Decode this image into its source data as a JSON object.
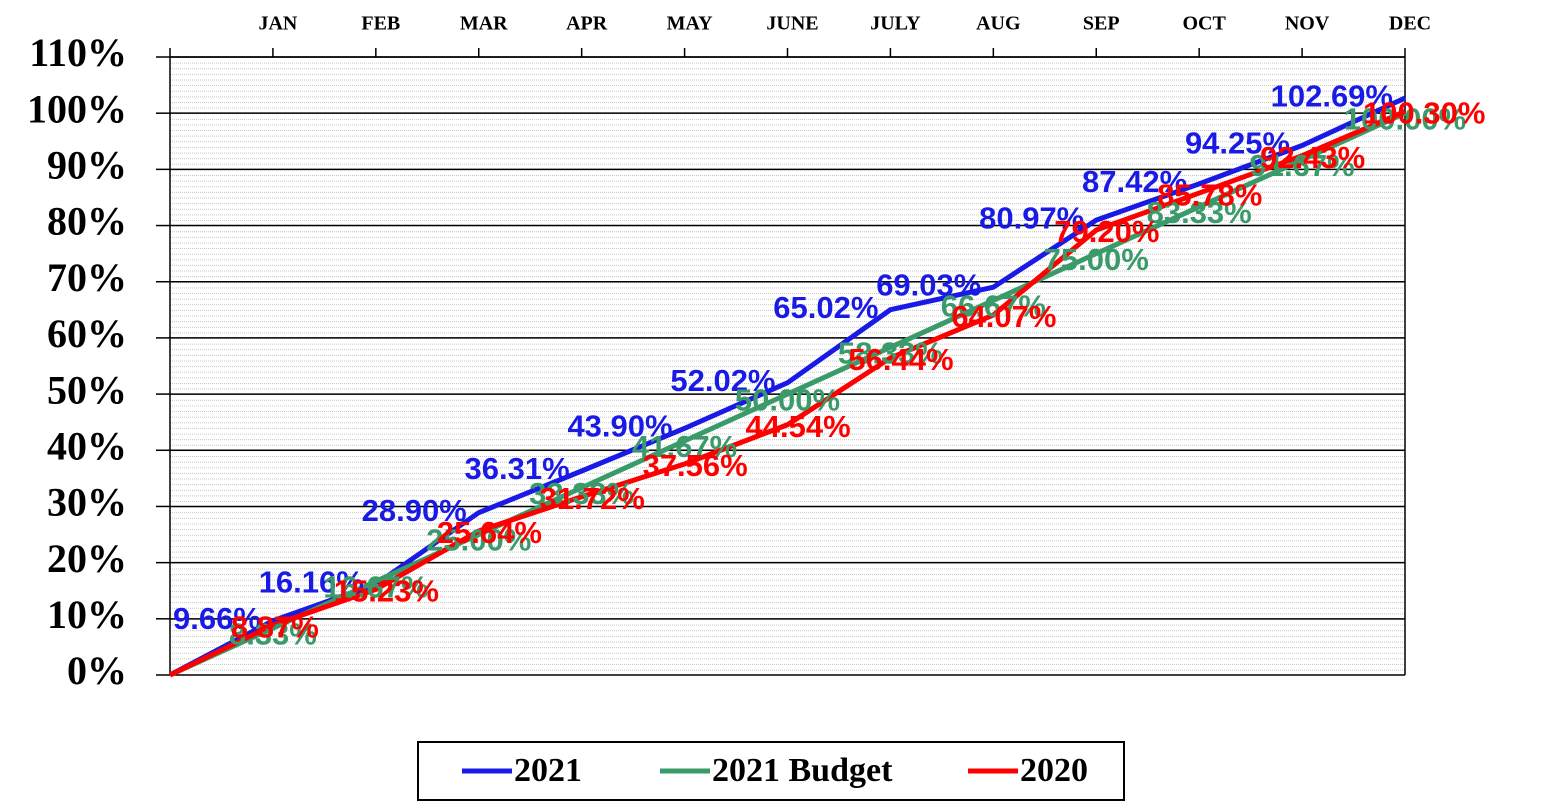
{
  "chart_data": {
    "type": "line",
    "categories": [
      null,
      "JAN",
      "FEB",
      "MAR",
      "APR",
      "MAY",
      "JUNE",
      "JULY",
      "AUG",
      "SEP",
      "OCT",
      "NOV",
      "DEC"
    ],
    "series": [
      {
        "name": "2021",
        "color": "#1a1ae6",
        "values": [
          0,
          9.66,
          16.16,
          28.9,
          36.31,
          43.9,
          52.02,
          65.02,
          69.03,
          80.97,
          87.42,
          94.25,
          102.69
        ],
        "value_labels": [
          null,
          "9.66%",
          "16.16%",
          "28.90%",
          "36.31%",
          "43.90%",
          "52.02%",
          "65.02%",
          "69.03%",
          "80.97%",
          "87.42%",
          "94.25%",
          "102.69%"
        ]
      },
      {
        "name": "2021 Budget",
        "color": "#3a9a6a",
        "values": [
          0,
          8.33,
          16.67,
          25.0,
          33.33,
          41.67,
          50.0,
          58.33,
          66.67,
          75.0,
          83.33,
          91.67,
          100.0
        ],
        "value_labels": [
          null,
          "8.33%",
          "16.67%",
          "25.00%",
          "33.33%",
          "41.67%",
          "50.00%",
          "58.33%",
          "66.67%",
          "75.00%",
          "83.33%",
          "91.67%",
          "100.00%"
        ]
      },
      {
        "name": "2020",
        "color": "#ff0000",
        "values": [
          0,
          8.87,
          15.23,
          25.64,
          31.72,
          37.56,
          44.54,
          56.44,
          64.07,
          79.2,
          85.78,
          92.43,
          100.3
        ],
        "value_labels": [
          null,
          "8.87%",
          "15.23%",
          "25.64%",
          "31.72%",
          "37.56%",
          "44.54%",
          "56.44%",
          "64.07%",
          "79.20%",
          "85.78%",
          "92.43%",
          "100.30%"
        ]
      }
    ],
    "ylim": [
      0,
      110
    ],
    "yticks": [
      {
        "value": 0,
        "label": "0%"
      },
      {
        "value": 10,
        "label": "10%"
      },
      {
        "value": 20,
        "label": "20%"
      },
      {
        "value": 30,
        "label": "30%"
      },
      {
        "value": 40,
        "label": "40%"
      },
      {
        "value": 50,
        "label": "50%"
      },
      {
        "value": 60,
        "label": "60%"
      },
      {
        "value": 70,
        "label": "70%"
      },
      {
        "value": 80,
        "label": "80%"
      },
      {
        "value": 90,
        "label": "90%"
      },
      {
        "value": 100,
        "label": "100%"
      },
      {
        "value": 110,
        "label": "110%"
      }
    ],
    "grid": true,
    "legend": "bottom"
  }
}
